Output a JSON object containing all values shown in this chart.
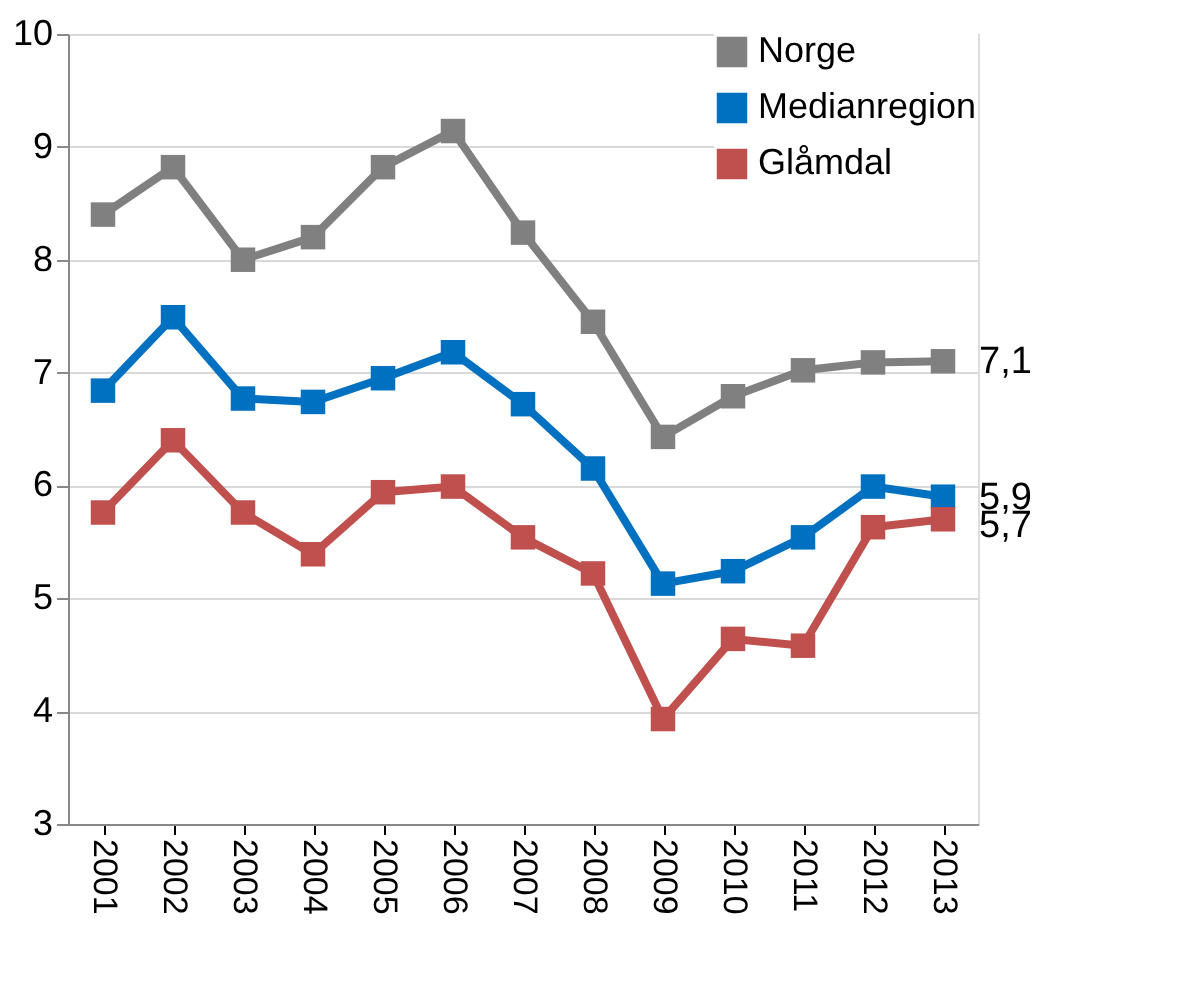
{
  "chart_data": {
    "type": "line",
    "categories": [
      "2001",
      "2002",
      "2003",
      "2004",
      "2005",
      "2006",
      "2007",
      "2008",
      "2009",
      "2010",
      "2011",
      "2012",
      "2013"
    ],
    "series": [
      {
        "name": "Norge",
        "color": "#808080",
        "values": [
          8.4,
          8.82,
          8.0,
          8.2,
          8.82,
          9.14,
          8.24,
          7.45,
          6.43,
          6.79,
          7.02,
          7.09,
          7.1
        ]
      },
      {
        "name": "Medianregion",
        "color": "#0070c0",
        "values": [
          6.84,
          7.49,
          6.77,
          6.74,
          6.95,
          7.18,
          6.72,
          6.15,
          5.13,
          5.24,
          5.54,
          5.99,
          5.9
        ]
      },
      {
        "name": "Glåmdal",
        "color": "#c0504d",
        "values": [
          5.76,
          6.4,
          5.76,
          5.39,
          5.94,
          5.99,
          5.54,
          5.22,
          3.93,
          4.64,
          4.58,
          5.63,
          5.7
        ]
      }
    ],
    "ylim": [
      3,
      10
    ],
    "yticks": [
      3,
      4,
      5,
      6,
      7,
      8,
      9,
      10
    ],
    "annotations": [
      {
        "text": "7,1",
        "x": "2013",
        "y": 7.1
      },
      {
        "text": "5,9",
        "x": "2013",
        "y": 5.9
      },
      {
        "text": "5,7",
        "x": "2013",
        "y": 5.7
      }
    ],
    "grid": "y",
    "legend": "top right",
    "marker": "square",
    "line_style": "solid"
  }
}
